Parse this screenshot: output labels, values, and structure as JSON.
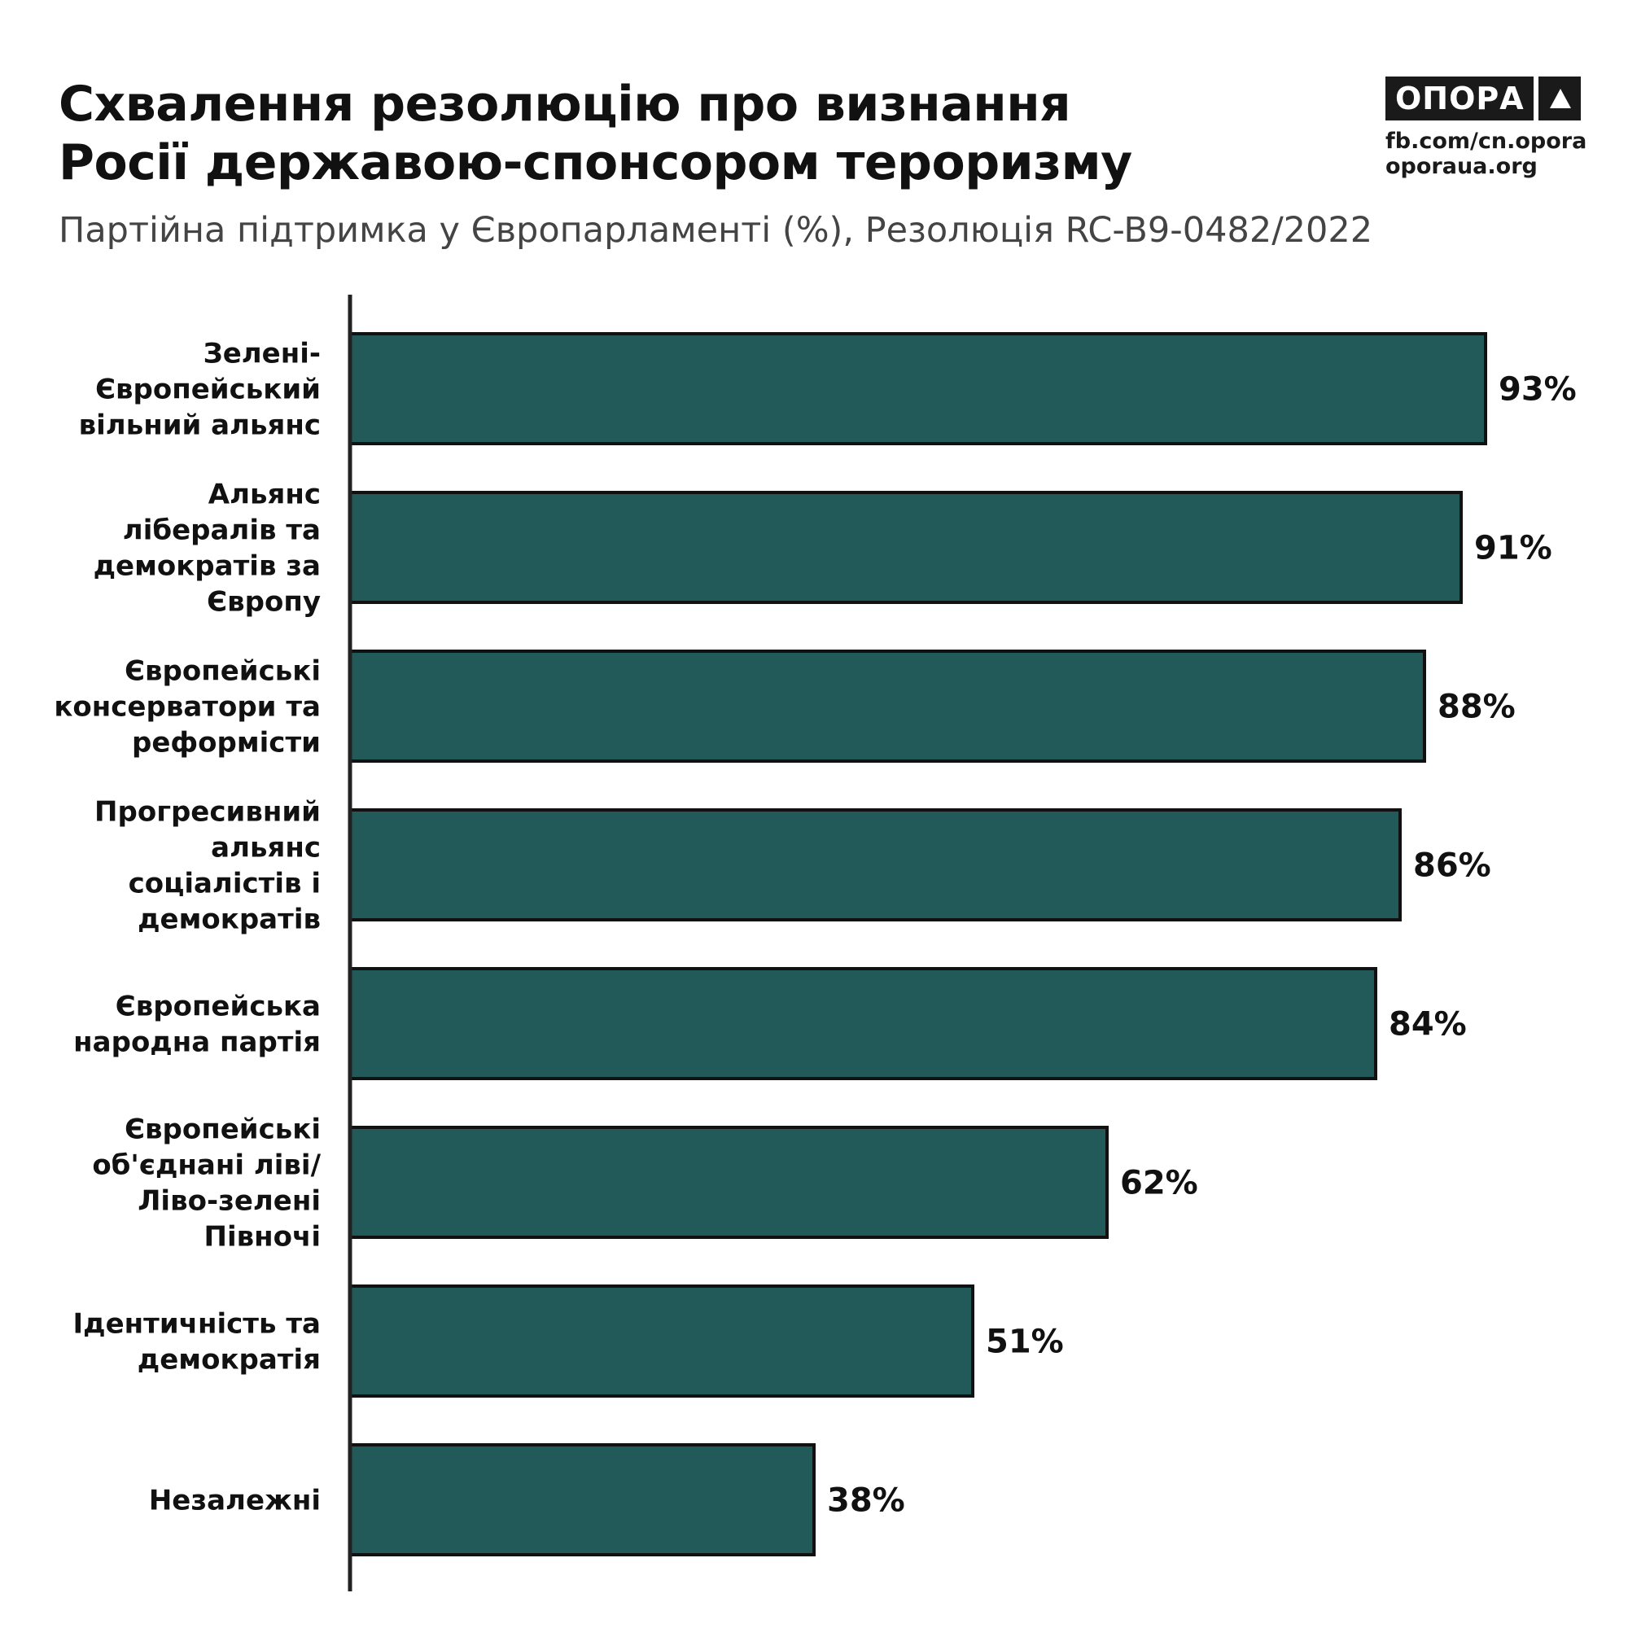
{
  "header": {
    "title_lines": [
      "Схвалення резолюцію про визнання",
      "Росії державою-спонсором тероризму"
    ],
    "subtitle": "Партійна підтримка у Європарламенті (%), Резолюція RC-B9-0482/2022"
  },
  "brand": {
    "logo_text": "ОПОРА",
    "logo_icon": "triangle-icon",
    "links": [
      "fb.com/cn.opora",
      "oporaua.org"
    ]
  },
  "colors": {
    "bar_fill": "#225a59",
    "bar_outline": "#111111",
    "axis": "#222222"
  },
  "chart_data": {
    "type": "bar",
    "orientation": "horizontal",
    "title": "Схвалення резолюцію про визнання Росії державою-спонсором тероризму",
    "subtitle": "Партійна підтримка у Європарламенті (%), Резолюція RC-B9-0482/2022",
    "categories": [
      [
        "Зелені-",
        "Європейський",
        "вільний альянс"
      ],
      [
        "Альянс",
        "лібералів та",
        "демократів за",
        "Європу"
      ],
      [
        "Європейські",
        "консерватори та",
        "реформісти"
      ],
      [
        "Прогресивний",
        "альянс",
        "соціалістів і",
        "демократів"
      ],
      [
        "Європейська",
        "народна партія"
      ],
      [
        "Європейські",
        "об'єднані ліві/",
        "Ліво-зелені",
        "Півночі"
      ],
      [
        "Ідентичність та",
        "демократія"
      ],
      [
        "Незалежні"
      ]
    ],
    "values": [
      93,
      91,
      88,
      86,
      84,
      62,
      51,
      38
    ],
    "value_labels": [
      "93%",
      "91%",
      "88%",
      "86%",
      "84%",
      "62%",
      "51%",
      "38%"
    ],
    "unit": "%",
    "xlim": [
      0,
      100
    ],
    "grid": false,
    "legend": "none"
  }
}
